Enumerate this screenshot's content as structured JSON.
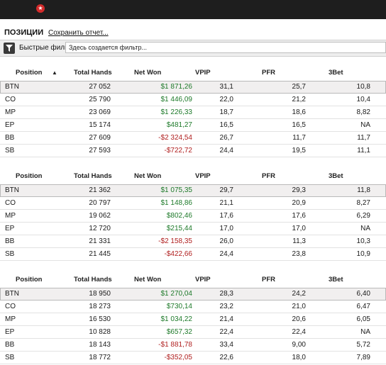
{
  "header": {
    "title": "ПОЗИЦИИ",
    "save_link": "Сохранить отчет..."
  },
  "filter": {
    "label": "Быстрые фильтры",
    "placeholder": "Здесь создается фильтр..."
  },
  "columns": [
    "Position",
    "Total Hands",
    "Net Won",
    "VPIP",
    "PFR",
    "3Bet"
  ],
  "colors": {
    "positive": "#1e7a2a",
    "negative": "#b01f1f",
    "logo": "#d22b2b"
  },
  "tables": [
    {
      "rows": [
        {
          "position": "BTN",
          "hands": "27 052",
          "net_won": "$1 871,26",
          "sign": "pos",
          "vpip": "31,1",
          "pfr": "25,7",
          "bet3": "10,8"
        },
        {
          "position": "CO",
          "hands": "25 790",
          "net_won": "$1 446,09",
          "sign": "pos",
          "vpip": "22,0",
          "pfr": "21,2",
          "bet3": "10,4"
        },
        {
          "position": "MP",
          "hands": "23 069",
          "net_won": "$1 226,33",
          "sign": "pos",
          "vpip": "18,7",
          "pfr": "18,6",
          "bet3": "8,82"
        },
        {
          "position": "EP",
          "hands": "15 174",
          "net_won": "$481,27",
          "sign": "pos",
          "vpip": "16,5",
          "pfr": "16,5",
          "bet3": "NA"
        },
        {
          "position": "BB",
          "hands": "27 609",
          "net_won": "-$2 324,54",
          "sign": "neg",
          "vpip": "26,7",
          "pfr": "11,7",
          "bet3": "11,7"
        },
        {
          "position": "SB",
          "hands": "27 593",
          "net_won": "-$722,72",
          "sign": "neg",
          "vpip": "24,4",
          "pfr": "19,5",
          "bet3": "11,1"
        }
      ]
    },
    {
      "rows": [
        {
          "position": "BTN",
          "hands": "21 362",
          "net_won": "$1 075,35",
          "sign": "pos",
          "vpip": "29,7",
          "pfr": "29,3",
          "bet3": "11,8"
        },
        {
          "position": "CO",
          "hands": "20 797",
          "net_won": "$1 148,86",
          "sign": "pos",
          "vpip": "21,1",
          "pfr": "20,9",
          "bet3": "8,27"
        },
        {
          "position": "MP",
          "hands": "19 062",
          "net_won": "$802,46",
          "sign": "pos",
          "vpip": "17,6",
          "pfr": "17,6",
          "bet3": "6,29"
        },
        {
          "position": "EP",
          "hands": "12 720",
          "net_won": "$215,44",
          "sign": "pos",
          "vpip": "17,0",
          "pfr": "17,0",
          "bet3": "NA"
        },
        {
          "position": "BB",
          "hands": "21 331",
          "net_won": "-$2 158,35",
          "sign": "neg",
          "vpip": "26,0",
          "pfr": "11,3",
          "bet3": "10,3"
        },
        {
          "position": "SB",
          "hands": "21 445",
          "net_won": "-$422,66",
          "sign": "neg",
          "vpip": "24,4",
          "pfr": "23,8",
          "bet3": "10,9"
        }
      ]
    },
    {
      "rows": [
        {
          "position": "BTN",
          "hands": "18 950",
          "net_won": "$1 270,04",
          "sign": "pos",
          "vpip": "28,3",
          "pfr": "24,2",
          "bet3": "6,40"
        },
        {
          "position": "CO",
          "hands": "18 273",
          "net_won": "$730,14",
          "sign": "pos",
          "vpip": "23,2",
          "pfr": "21,0",
          "bet3": "6,47"
        },
        {
          "position": "MP",
          "hands": "16 530",
          "net_won": "$1 034,22",
          "sign": "pos",
          "vpip": "21,4",
          "pfr": "20,6",
          "bet3": "6,05"
        },
        {
          "position": "EP",
          "hands": "10 828",
          "net_won": "$657,32",
          "sign": "pos",
          "vpip": "22,4",
          "pfr": "22,4",
          "bet3": "NA"
        },
        {
          "position": "BB",
          "hands": "18 143",
          "net_won": "-$1 881,78",
          "sign": "neg",
          "vpip": "33,4",
          "pfr": "9,00",
          "bet3": "5,72"
        },
        {
          "position": "SB",
          "hands": "18 772",
          "net_won": "-$352,05",
          "sign": "neg",
          "vpip": "22,6",
          "pfr": "18,0",
          "bet3": "7,89"
        }
      ]
    }
  ]
}
